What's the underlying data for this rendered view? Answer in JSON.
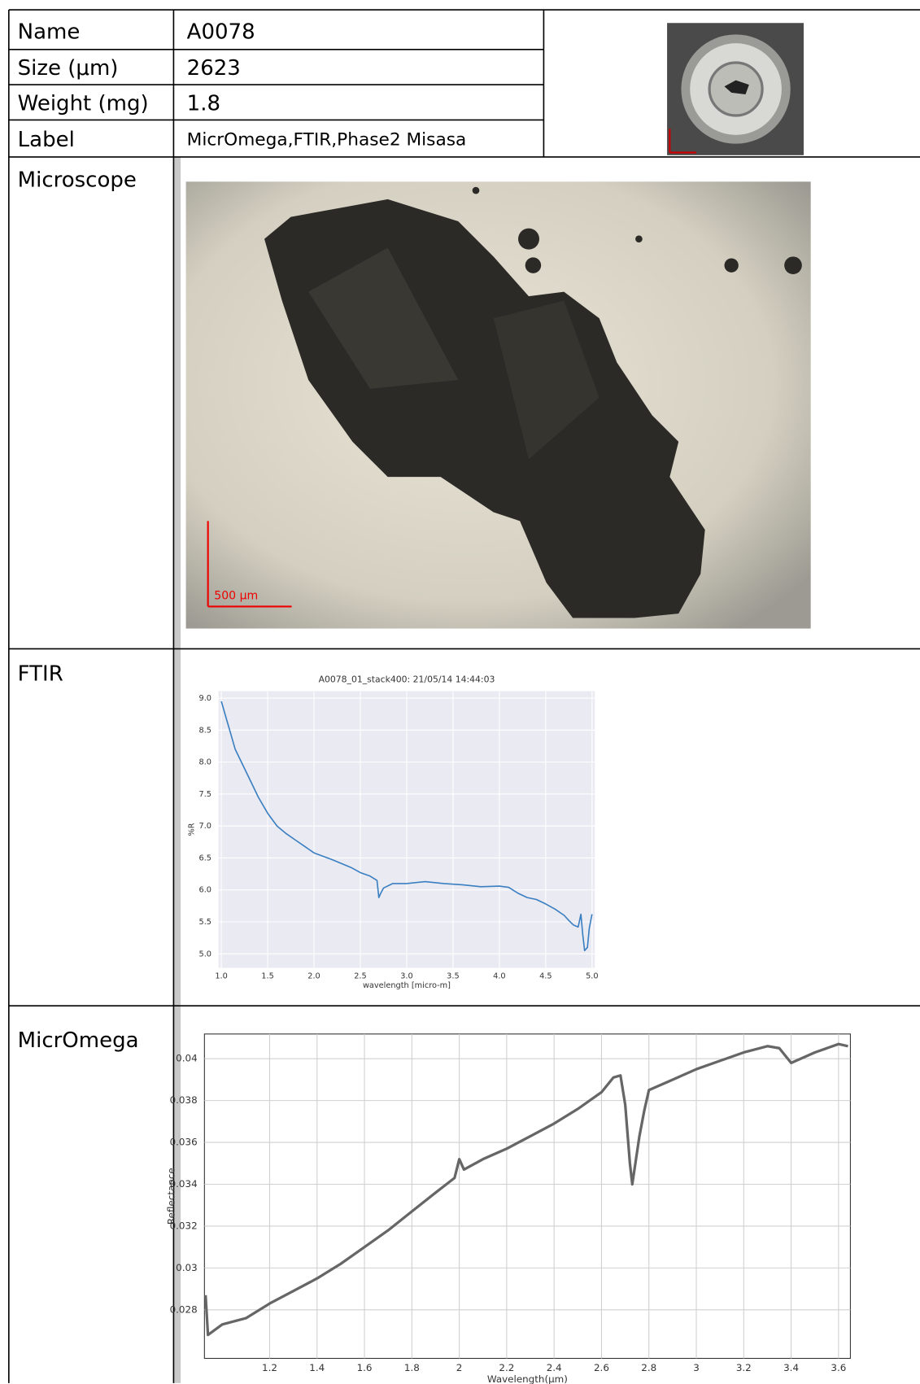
{
  "table": {
    "rows": [
      [
        "Name",
        "A0078"
      ],
      [
        "Size (μm)",
        "2623"
      ],
      [
        "Weight (mg)",
        "1.8"
      ],
      [
        "Label",
        "MicrOmega,FTIR,Phase2 Misasa"
      ]
    ],
    "sections": [
      "Microscope",
      "FTIR",
      "MicrOmega"
    ]
  },
  "microscope": {
    "scale_bar": "500 μm"
  },
  "chart_data": [
    {
      "type": "line",
      "title": "A0078_01_stack400:  21/05/14 14:44:03",
      "x_label": "wavelength [micro-m]",
      "y_label": "%R",
      "background": "#eaeaf2",
      "grid": true,
      "xlim": [
        0.97,
        5.03
      ],
      "ylim": [
        4.78,
        9.11
      ],
      "xticks": [
        {
          "value": 1,
          "label": "1.0"
        },
        1.5,
        {
          "value": 2,
          "label": "2.0"
        },
        2.5,
        {
          "value": 3,
          "label": "3.0"
        },
        3.5,
        {
          "value": 4,
          "label": "4.0"
        },
        4.5,
        {
          "value": 5,
          "label": "5.0"
        }
      ],
      "yticks": [
        {
          "value": 5,
          "label": "5.0"
        },
        5.5,
        {
          "value": 6,
          "label": "6.0"
        },
        6.5,
        {
          "value": 7,
          "label": "7.0"
        },
        7.5,
        {
          "value": 8,
          "label": "8.0"
        },
        8.5,
        {
          "value": 9,
          "label": "9.0"
        }
      ],
      "series": [
        {
          "color": "#3a7fc1",
          "x": [
            1.0,
            1.05,
            1.1,
            1.15,
            1.2,
            1.3,
            1.4,
            1.5,
            1.6,
            1.7,
            1.8,
            1.9,
            2.0,
            2.2,
            2.4,
            2.5,
            2.6,
            2.68,
            2.7,
            2.72,
            2.75,
            2.85,
            3.0,
            3.2,
            3.4,
            3.6,
            3.8,
            4.0,
            4.1,
            4.2,
            4.3,
            4.4,
            4.5,
            4.6,
            4.7,
            4.75,
            4.8,
            4.85,
            4.88,
            4.9,
            4.92,
            4.95,
            4.97,
            5.0
          ],
          "values": [
            8.95,
            8.7,
            8.45,
            8.2,
            8.05,
            7.75,
            7.45,
            7.2,
            7.0,
            6.88,
            6.78,
            6.68,
            6.58,
            6.47,
            6.35,
            6.27,
            6.22,
            6.15,
            5.88,
            5.95,
            6.03,
            6.1,
            6.1,
            6.13,
            6.1,
            6.08,
            6.05,
            6.06,
            6.04,
            5.95,
            5.88,
            5.85,
            5.78,
            5.7,
            5.6,
            5.52,
            5.45,
            5.42,
            5.62,
            5.3,
            5.05,
            5.1,
            5.4,
            5.62
          ]
        }
      ]
    },
    {
      "type": "line",
      "x_label": "Wavelength(μm)",
      "y_label": "Reflectance",
      "background": "#ffffff",
      "grid": true,
      "xlim": [
        0.925,
        3.65
      ],
      "ylim": [
        0.02568,
        0.04118
      ],
      "xticks": [
        1.2,
        1.4,
        1.6,
        1.8,
        2,
        2.2,
        2.4,
        2.6,
        2.8,
        3,
        3.2,
        3.4,
        3.6
      ],
      "yticks": [
        0.028,
        0.03,
        0.032,
        0.034,
        0.036,
        0.038,
        0.04
      ],
      "series": [
        {
          "color": "#666666",
          "x": [
            0.93,
            0.94,
            1.0,
            1.1,
            1.2,
            1.3,
            1.4,
            1.5,
            1.6,
            1.7,
            1.8,
            1.9,
            1.98,
            2.0,
            2.02,
            2.1,
            2.2,
            2.3,
            2.4,
            2.5,
            2.6,
            2.65,
            2.68,
            2.7,
            2.72,
            2.73,
            2.76,
            2.78,
            2.8,
            2.9,
            3.0,
            3.1,
            3.2,
            3.3,
            3.35,
            3.4,
            3.5,
            3.6,
            3.64
          ],
          "values": [
            0.0287,
            0.0268,
            0.0273,
            0.0276,
            0.0283,
            0.0289,
            0.0295,
            0.0302,
            0.031,
            0.0318,
            0.0327,
            0.0336,
            0.0343,
            0.0352,
            0.0347,
            0.0352,
            0.0357,
            0.0363,
            0.0369,
            0.0376,
            0.0384,
            0.0391,
            0.0392,
            0.0378,
            0.035,
            0.034,
            0.0363,
            0.0375,
            0.0385,
            0.039,
            0.0395,
            0.0399,
            0.0403,
            0.0406,
            0.0405,
            0.0398,
            0.0403,
            0.0407,
            0.0406
          ]
        }
      ]
    }
  ]
}
